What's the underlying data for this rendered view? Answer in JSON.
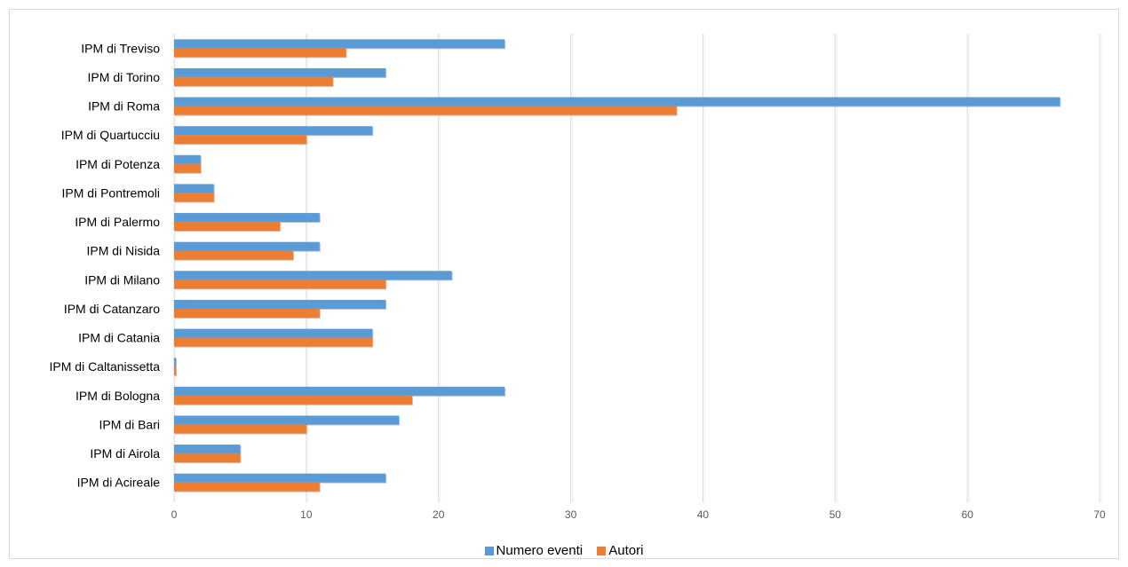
{
  "chart_data": {
    "type": "bar",
    "orientation": "horizontal",
    "categories": [
      "IPM di Treviso",
      "IPM di Torino",
      "IPM di Roma",
      "IPM di Quartucciu",
      "IPM di Potenza",
      "IPM di Pontremoli",
      "IPM di Palermo",
      "IPM di Nisida",
      "IPM di Milano",
      "IPM di Catanzaro",
      "IPM di Catania",
      "IPM di Caltanissetta",
      "IPM di Bologna",
      "IPM di Bari",
      "IPM di Airola",
      "IPM di Acireale"
    ],
    "series": [
      {
        "name": "Numero eventi",
        "color": "#5b9bd5",
        "values": [
          25,
          16,
          67,
          15,
          2,
          3,
          11,
          11,
          21,
          16,
          15,
          0,
          25,
          17,
          5,
          16
        ]
      },
      {
        "name": "Autori",
        "color": "#ed7d31",
        "values": [
          13,
          12,
          38,
          10,
          2,
          3,
          8,
          9,
          16,
          11,
          15,
          0,
          18,
          10,
          5,
          11
        ]
      }
    ],
    "xlim": [
      0,
      70
    ],
    "xticks": [
      "0",
      "10",
      "20",
      "30",
      "40",
      "50",
      "60",
      "70"
    ],
    "grid": true,
    "legend": "bottom"
  }
}
